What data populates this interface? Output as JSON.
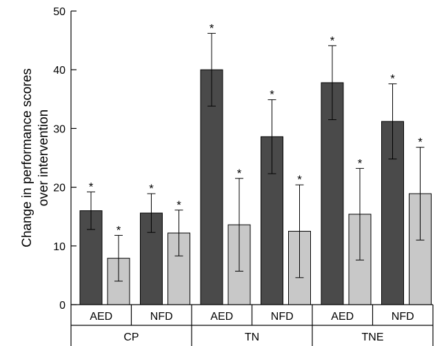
{
  "chart_data": {
    "type": "bar",
    "ylabel_lines": [
      "Change in performance scores",
      "over intervention"
    ],
    "ylim": [
      0,
      50
    ],
    "yticks": [
      "0",
      "10",
      "20",
      "30",
      "40",
      "50"
    ],
    "groups": [
      {
        "label": "CP",
        "subgroups": [
          {
            "label": "AED",
            "bars": [
              {
                "value": 16.0,
                "err": 3.2,
                "star": "*"
              },
              {
                "value": 7.9,
                "err": 3.9,
                "star": "*"
              }
            ]
          },
          {
            "label": "NFD",
            "bars": [
              {
                "value": 15.6,
                "err": 3.3,
                "star": "*"
              },
              {
                "value": 12.2,
                "err": 3.9,
                "star": "*"
              }
            ]
          }
        ]
      },
      {
        "label": "TN",
        "subgroups": [
          {
            "label": "AED",
            "bars": [
              {
                "value": 40.0,
                "err": 6.2,
                "star": "*"
              },
              {
                "value": 13.6,
                "err": 7.9,
                "star": "*"
              }
            ]
          },
          {
            "label": "NFD",
            "bars": [
              {
                "value": 28.6,
                "err": 6.3,
                "star": "*"
              },
              {
                "value": 12.5,
                "err": 7.9,
                "star": "*"
              }
            ]
          }
        ]
      },
      {
        "label": "TNE",
        "subgroups": [
          {
            "label": "AED",
            "bars": [
              {
                "value": 37.8,
                "err": 6.3,
                "star": "*"
              },
              {
                "value": 15.4,
                "err": 7.8,
                "star": "*"
              }
            ]
          },
          {
            "label": "NFD",
            "bars": [
              {
                "value": 31.2,
                "err": 6.4,
                "star": "*"
              },
              {
                "value": 18.9,
                "err": 7.9,
                "star": "*"
              }
            ]
          }
        ]
      }
    ],
    "series_colors": [
      "#4a4a4a",
      "#c8c8c8"
    ],
    "grid": false,
    "legend": "none"
  }
}
